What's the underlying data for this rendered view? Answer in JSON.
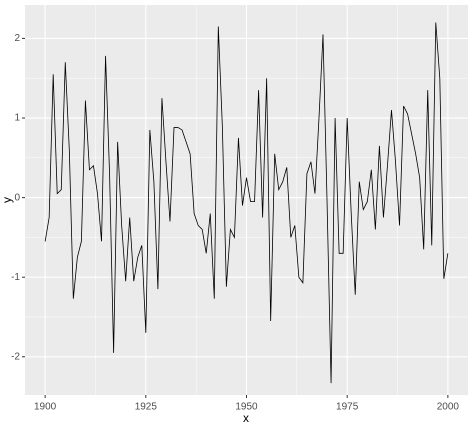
{
  "chart_data": {
    "type": "line",
    "x_label": "x",
    "y_label": "y",
    "x": [
      1900,
      1901,
      1902,
      1903,
      1904,
      1905,
      1906,
      1907,
      1908,
      1909,
      1910,
      1911,
      1912,
      1913,
      1914,
      1915,
      1916,
      1917,
      1918,
      1919,
      1920,
      1921,
      1922,
      1923,
      1924,
      1925,
      1926,
      1927,
      1928,
      1929,
      1930,
      1931,
      1932,
      1933,
      1934,
      1935,
      1936,
      1937,
      1938,
      1939,
      1940,
      1941,
      1942,
      1943,
      1944,
      1945,
      1946,
      1947,
      1948,
      1949,
      1950,
      1951,
      1952,
      1953,
      1954,
      1955,
      1956,
      1957,
      1958,
      1959,
      1960,
      1961,
      1962,
      1963,
      1964,
      1965,
      1966,
      1967,
      1968,
      1969,
      1970,
      1971,
      1972,
      1973,
      1974,
      1975,
      1976,
      1977,
      1978,
      1979,
      1980,
      1981,
      1982,
      1983,
      1984,
      1985,
      1986,
      1987,
      1988,
      1989,
      1990,
      1991,
      1992,
      1993,
      1994,
      1995,
      1996,
      1997,
      1998,
      1999,
      2000
    ],
    "series": [
      {
        "color": "#000000",
        "values": [
          -0.55,
          -0.25,
          1.55,
          0.05,
          0.1,
          1.7,
          0.6,
          -1.27,
          -0.75,
          -0.55,
          1.22,
          0.35,
          0.4,
          0.05,
          -0.55,
          1.78,
          0.3,
          -1.95,
          0.7,
          -0.35,
          -1.05,
          -0.25,
          -1.05,
          -0.75,
          -0.6,
          -1.7,
          0.85,
          0.2,
          -1.15,
          1.25,
          0.45,
          -0.3,
          0.88,
          0.88,
          0.85,
          0.7,
          0.55,
          -0.2,
          -0.35,
          -0.4,
          -0.7,
          -0.2,
          -1.27,
          2.15,
          0.9,
          -1.12,
          -0.4,
          -0.5,
          0.75,
          -0.1,
          0.25,
          -0.05,
          -0.05,
          1.35,
          -0.25,
          1.5,
          -1.55,
          0.55,
          0.1,
          0.2,
          0.38,
          -0.5,
          -0.35,
          -1.0,
          -1.07,
          0.3,
          0.45,
          0.05,
          1.0,
          2.05,
          -0.05,
          -2.33,
          1.0,
          -0.7,
          -0.7,
          1.0,
          -0.2,
          -1.22,
          0.2,
          -0.15,
          -0.05,
          0.35,
          -0.4,
          0.65,
          -0.25,
          0.4,
          1.1,
          0.45,
          -0.35,
          1.15,
          1.05,
          0.8,
          0.55,
          0.25,
          -0.65,
          1.35,
          -0.6,
          2.2,
          1.5,
          -1.02,
          -0.7
        ]
      }
    ],
    "xlim": [
      1895,
      2005
    ],
    "xticks": [
      1900,
      1925,
      1950,
      1975,
      2000
    ],
    "ylim": [
      -2.48,
      2.42
    ],
    "yticks": [
      -2,
      -1,
      0,
      1,
      2
    ],
    "grid": true
  }
}
